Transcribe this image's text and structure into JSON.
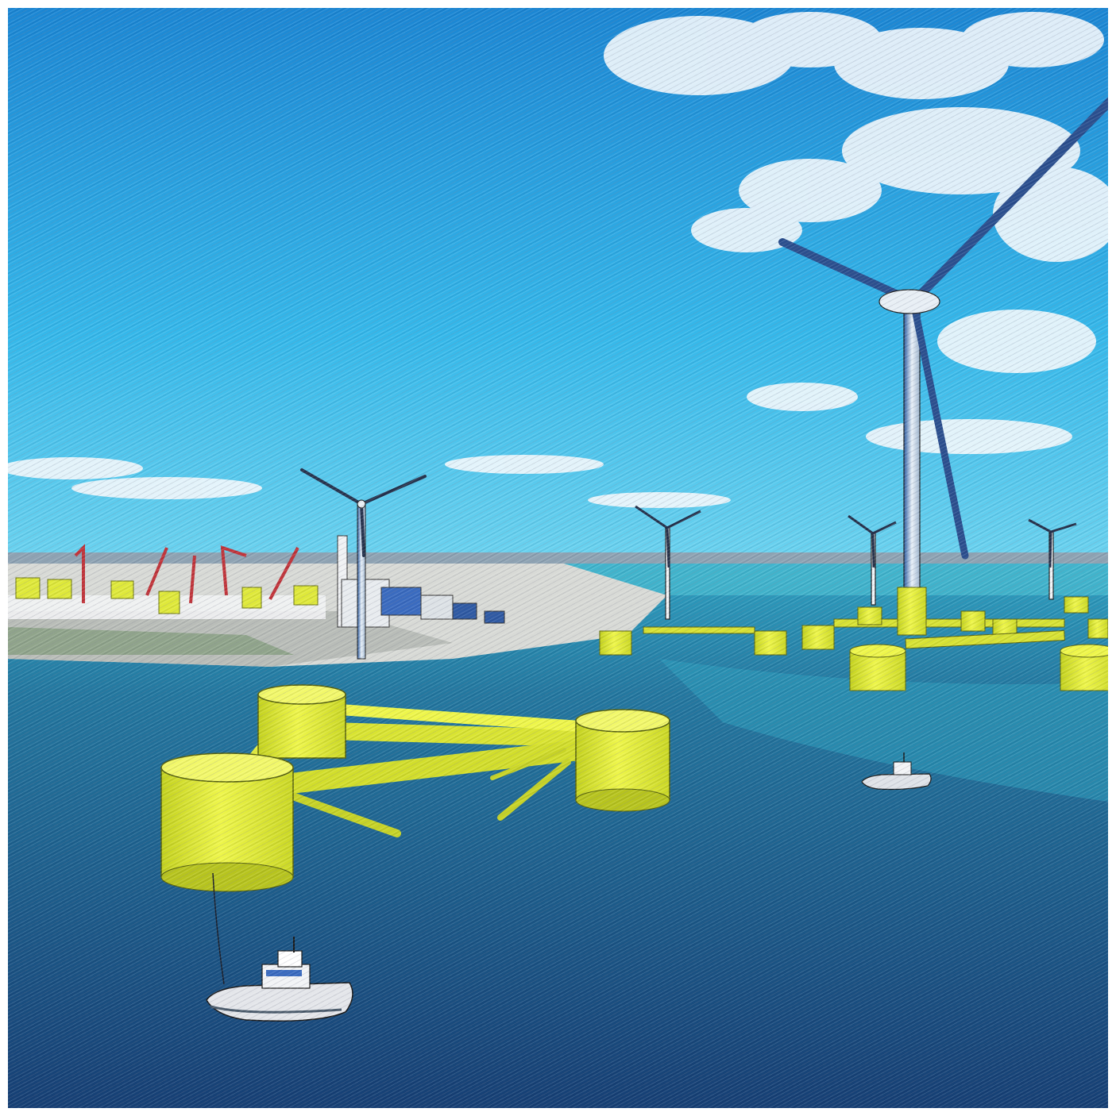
{
  "image": {
    "description_tags": [
      "floating-offshore-wind-turbines",
      "port",
      "tugboats",
      "sea",
      "sky"
    ],
    "colors": {
      "sky_top": "#1e90d8",
      "sky_bottom": "#3fc1ea",
      "sea_far": "#2f9fc0",
      "sea_near": "#1a4f86",
      "float_yellow": "#e7f23a",
      "float_yellow_shadow": "#a9b81c",
      "turbine_white": "#eef3f7",
      "turbine_blue": "#2b5aa0",
      "land": "#d9dbd8",
      "crane_red": "#c0343a"
    },
    "icons": [
      "wind-turbine",
      "tugboat",
      "floating-platform",
      "crane"
    ]
  }
}
